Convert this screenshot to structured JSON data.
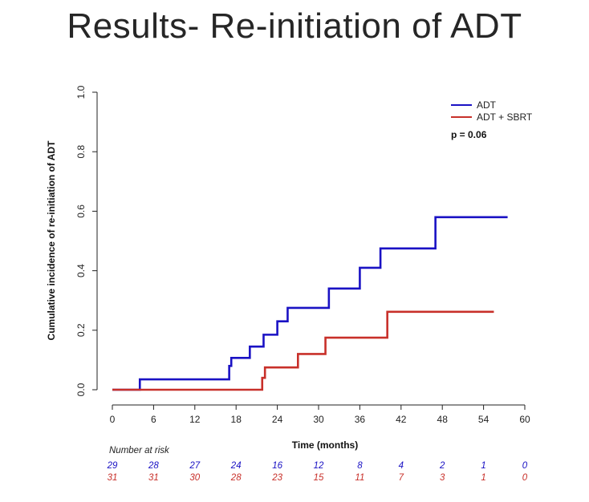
{
  "slide": {
    "title": "Results- Re-initiation of ADT"
  },
  "chart_data": {
    "type": "line",
    "step": true,
    "xlabel": "Time (months)",
    "ylabel": "Cumulative incidence of re-initiation of ADT",
    "xlim": [
      0,
      60
    ],
    "ylim": [
      0,
      1
    ],
    "x_ticks": [
      0,
      6,
      12,
      18,
      24,
      30,
      36,
      42,
      48,
      54,
      60
    ],
    "y_ticks": [
      "0.0",
      "0.2",
      "0.4",
      "0.6",
      "0.8",
      "1.0"
    ],
    "grid": false,
    "legend_position": "top-right",
    "annotation": "p = 0.06",
    "series": [
      {
        "name": "ADT",
        "color": "#1a12c4",
        "x": [
          0,
          4,
          17,
          17.3,
          20,
          22,
          24,
          25.5,
          31.5,
          36,
          39,
          47,
          57.5
        ],
        "y": [
          0,
          0.035,
          0.08,
          0.107,
          0.145,
          0.185,
          0.23,
          0.275,
          0.34,
          0.41,
          0.475,
          0.58,
          0.58
        ]
      },
      {
        "name": "ADT + SBRT",
        "color": "#c8302a",
        "x": [
          0,
          21.8,
          22.2,
          27,
          31,
          40,
          55.5
        ],
        "y": [
          0,
          0.04,
          0.075,
          0.12,
          0.175,
          0.262,
          0.262
        ]
      }
    ],
    "risk_table": {
      "title": "Number at risk",
      "times": [
        0,
        6,
        12,
        18,
        24,
        30,
        36,
        42,
        48,
        54,
        60
      ],
      "rows": [
        {
          "series": "ADT",
          "color": "#1a12c4",
          "values": [
            "29",
            "28",
            "27",
            "24",
            "16",
            "12",
            "8",
            "4",
            "2",
            "1",
            "0"
          ]
        },
        {
          "series": "ADT + SBRT",
          "color": "#c8302a",
          "values": [
            "31",
            "31",
            "30",
            "28",
            "23",
            "15",
            "11",
            "7",
            "3",
            "1",
            "0"
          ]
        }
      ]
    }
  }
}
